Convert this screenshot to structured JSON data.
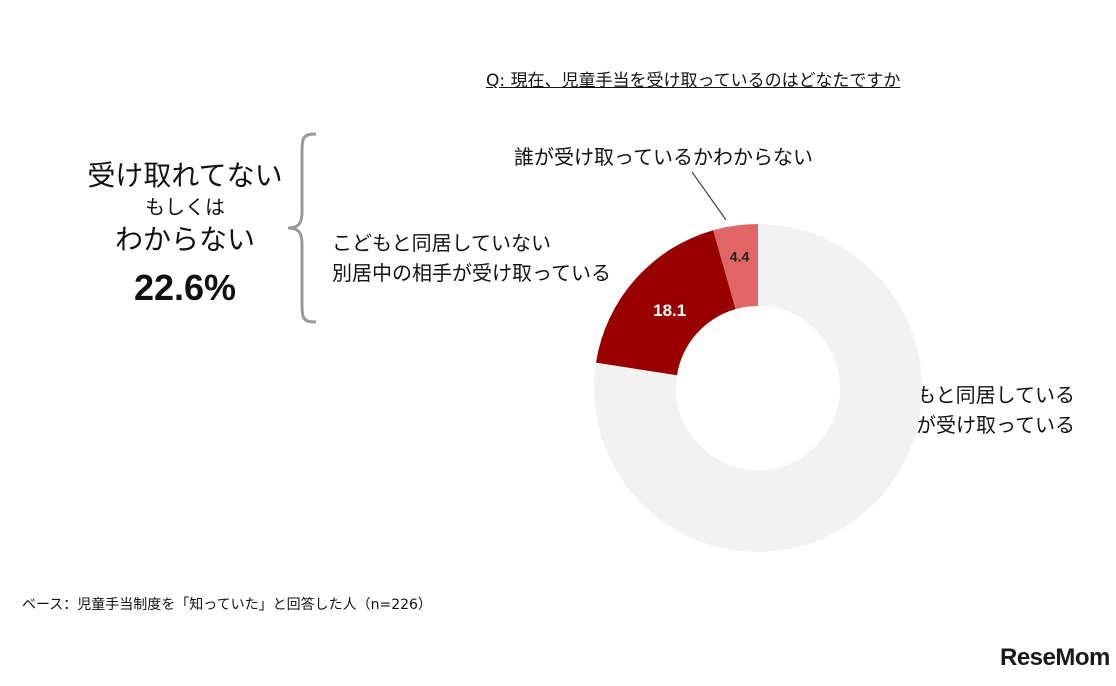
{
  "question": "Q: 現在、児童手当を受け取っているのはどなたですか",
  "summary": {
    "line1": "受け取れてない",
    "line2": "もしくは",
    "line3": "わからない",
    "percent": "22.6%"
  },
  "chart_data": {
    "type": "pie",
    "donut": true,
    "slices": [
      {
        "label_lines": [
          "こどもと同居している",
          "自分が受け取っている"
        ],
        "value": 77.4,
        "value_label": "",
        "color": "#f2f2f2"
      },
      {
        "label_lines": [
          "こどもと同居していない",
          "別居中の相手が受け取っている"
        ],
        "value": 18.1,
        "value_label": "18.1",
        "color": "#990000"
      },
      {
        "label_lines": [
          "誰が受け取っているかわからない"
        ],
        "value": 4.4,
        "value_label": "4.4",
        "color": "#e06666"
      }
    ]
  },
  "footnote": "ベース：児童手当制度を「知っていた」と回答した人（n=226）",
  "logo": "ReseMom"
}
